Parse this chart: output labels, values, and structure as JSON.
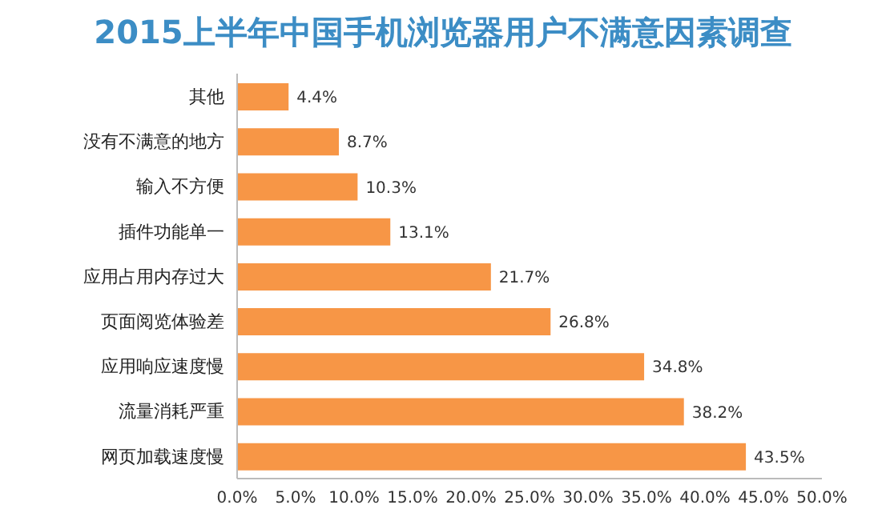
{
  "chart_data": {
    "type": "bar",
    "orientation": "horizontal",
    "title": "2015上半年中国手机浏览器用户不满意因素调查",
    "categories": [
      "其他",
      "没有不满意的地方",
      "输入不方便",
      "插件功能单一",
      "应用占用内存过大",
      "页面阅览体验差",
      "应用响应速度慢",
      "流量消耗严重",
      "网页加载速度慢"
    ],
    "values": [
      4.4,
      8.7,
      10.3,
      13.1,
      21.7,
      26.8,
      34.8,
      38.2,
      43.5
    ],
    "value_labels": [
      "4.4%",
      "8.7%",
      "10.3%",
      "13.1%",
      "21.7%",
      "26.8%",
      "34.8%",
      "38.2%",
      "43.5%"
    ],
    "color": "#f79646",
    "xlim": [
      0,
      50
    ],
    "xticks": [
      {
        "value": 0,
        "label": "0.0%"
      },
      {
        "value": 5,
        "label": "5.0%"
      },
      {
        "value": 10,
        "label": "10.0%"
      },
      {
        "value": 15,
        "label": "15.0%"
      },
      {
        "value": 20,
        "label": "20.0%"
      },
      {
        "value": 25,
        "label": "25.0%"
      },
      {
        "value": 30,
        "label": "30.0%"
      },
      {
        "value": 35,
        "label": "35.0%"
      },
      {
        "value": 40,
        "label": "40.0%"
      },
      {
        "value": 45,
        "label": "45.0%"
      },
      {
        "value": 50,
        "label": "50.0%"
      }
    ]
  }
}
